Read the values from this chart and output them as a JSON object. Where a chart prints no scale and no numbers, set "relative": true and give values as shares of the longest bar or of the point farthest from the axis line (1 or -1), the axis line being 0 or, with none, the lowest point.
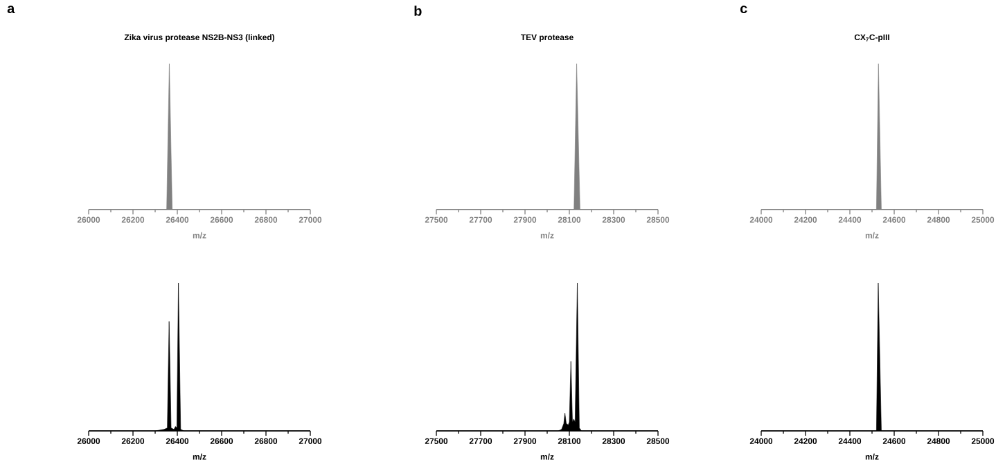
{
  "chart_data": [
    {
      "type": "area",
      "title": "Zika virus protease NS2B-NS3  (linked)",
      "xlabel": "m/z",
      "annotations": [
        "a"
      ],
      "relative": true,
      "color": "#808080",
      "xlim": [
        26000,
        27000
      ],
      "xticks": [
        26000,
        {
          "value": 26100,
          "label": null
        },
        26200,
        {
          "value": 26300,
          "label": null
        },
        26400,
        {
          "value": 26500,
          "label": null
        },
        26600,
        {
          "value": 26700,
          "label": null
        },
        26800,
        {
          "value": 26900,
          "label": null
        },
        27000
      ],
      "x": [
        26000,
        26352,
        26364,
        26377,
        27000
      ],
      "values": [
        0,
        0,
        1,
        0,
        0
      ]
    },
    {
      "type": "area",
      "title": "TEV protease",
      "xlabel": "m/z",
      "annotations": [
        "b"
      ],
      "relative": true,
      "color": "#808080",
      "xlim": [
        27500,
        28500
      ],
      "xticks": [
        27500,
        {
          "value": 27600,
          "label": null
        },
        27700,
        {
          "value": 27800,
          "label": null
        },
        27900,
        {
          "value": 28000,
          "label": null
        },
        28100,
        {
          "value": 28200,
          "label": null
        },
        28300,
        {
          "value": 28400,
          "label": null
        },
        28500
      ],
      "x": [
        27500,
        28121,
        28133,
        28148,
        28500
      ],
      "values": [
        0,
        0,
        1,
        0,
        0
      ]
    },
    {
      "type": "area",
      "title": "CX$_{7}$C-pIII",
      "xlabel": "m/z",
      "annotations": [
        "c"
      ],
      "relative": true,
      "color": "#808080",
      "xlim": [
        24000,
        25000
      ],
      "xticks": [
        24000,
        {
          "value": 24100,
          "label": null
        },
        24200,
        {
          "value": 24300,
          "label": null
        },
        24400,
        {
          "value": 24500,
          "label": null
        },
        24600,
        {
          "value": 24700,
          "label": null
        },
        24800,
        {
          "value": 24900,
          "label": null
        },
        25000
      ],
      "x": [
        24000,
        24520,
        24529,
        24542,
        25000
      ],
      "values": [
        0,
        0,
        1,
        0,
        0
      ]
    },
    {
      "type": "area",
      "xlabel": "m/z",
      "relative": true,
      "color": "#000000",
      "xlim": [
        26000,
        27000
      ],
      "xticks": [
        26000,
        {
          "value": 26100,
          "label": null
        },
        26200,
        {
          "value": 26300,
          "label": null
        },
        26400,
        {
          "value": 26500,
          "label": null
        },
        26600,
        {
          "value": 26700,
          "label": null
        },
        26800,
        {
          "value": 26900,
          "label": null
        },
        27000
      ],
      "x": [
        26000,
        26300,
        26340,
        26355,
        26363,
        26372,
        26385,
        26392,
        26398,
        26405,
        26415,
        26430,
        27000
      ],
      "values": [
        0,
        0,
        0.01,
        0.02,
        0.74,
        0.02,
        0.01,
        0.03,
        0.02,
        1,
        0.01,
        0,
        0
      ]
    },
    {
      "type": "area",
      "xlabel": "m/z",
      "relative": true,
      "color": "#000000",
      "xlim": [
        27500,
        28500
      ],
      "xticks": [
        27500,
        {
          "value": 27600,
          "label": null
        },
        27700,
        {
          "value": 27800,
          "label": null
        },
        27900,
        {
          "value": 28000,
          "label": null
        },
        28100,
        {
          "value": 28200,
          "label": null
        },
        28300,
        {
          "value": 28400,
          "label": null
        },
        28500
      ],
      "x": [
        27500,
        28050,
        28065,
        28075,
        28080,
        28086,
        28095,
        28100,
        28107,
        28114,
        28120,
        28126,
        28136,
        28145,
        28155,
        28500
      ],
      "values": [
        0,
        0,
        0.01,
        0.05,
        0.12,
        0.05,
        0.04,
        0.06,
        0.47,
        0.06,
        0.08,
        0.06,
        1,
        0.02,
        0,
        0
      ]
    },
    {
      "type": "area",
      "xlabel": "m/z",
      "relative": true,
      "color": "#000000",
      "xlim": [
        24000,
        25000
      ],
      "xticks": [
        24000,
        {
          "value": 24100,
          "label": null
        },
        24200,
        {
          "value": 24300,
          "label": null
        },
        24400,
        {
          "value": 24500,
          "label": null
        },
        24600,
        {
          "value": 24700,
          "label": null
        },
        24800,
        {
          "value": 24900,
          "label": null
        },
        25000
      ],
      "x": [
        24000,
        24520,
        24528,
        24542,
        25000
      ],
      "values": [
        0,
        0,
        1,
        0,
        0
      ]
    }
  ]
}
